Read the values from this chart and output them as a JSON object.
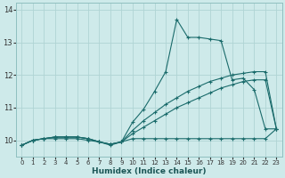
{
  "xlabel": "Humidex (Indice chaleur)",
  "bg_color": "#ceeaea",
  "grid_color": "#b0d4d4",
  "line_color": "#1a6b6b",
  "xlim": [
    -0.5,
    23.5
  ],
  "ylim": [
    9.5,
    14.2
  ],
  "yticks": [
    10,
    11,
    12,
    13,
    14
  ],
  "xticks": [
    0,
    1,
    2,
    3,
    4,
    5,
    6,
    7,
    8,
    9,
    10,
    11,
    12,
    13,
    14,
    15,
    16,
    17,
    18,
    19,
    20,
    21,
    22,
    23
  ],
  "series": [
    {
      "x": [
        0,
        1,
        2,
        3,
        4,
        5,
        6,
        7,
        8,
        9,
        10,
        11,
        12,
        13,
        14,
        15,
        16,
        17,
        18,
        19,
        20,
        21,
        22,
        23
      ],
      "y": [
        9.85,
        10.0,
        10.05,
        10.05,
        10.05,
        10.05,
        10.0,
        9.95,
        9.85,
        9.95,
        10.05,
        10.05,
        10.05,
        10.05,
        10.05,
        10.05,
        10.05,
        10.05,
        10.05,
        10.05,
        10.05,
        10.05,
        10.05,
        10.35
      ]
    },
    {
      "x": [
        0,
        1,
        2,
        3,
        4,
        5,
        6,
        7,
        8,
        9,
        10,
        11,
        12,
        13,
        14,
        15,
        16,
        17,
        18,
        19,
        20,
        21,
        22,
        23
      ],
      "y": [
        9.85,
        10.0,
        10.05,
        10.1,
        10.1,
        10.1,
        10.05,
        9.95,
        9.88,
        9.95,
        10.2,
        10.4,
        10.6,
        10.8,
        11.0,
        11.15,
        11.3,
        11.45,
        11.6,
        11.7,
        11.8,
        11.85,
        11.85,
        10.35
      ]
    },
    {
      "x": [
        0,
        1,
        2,
        3,
        4,
        5,
        6,
        7,
        8,
        9,
        10,
        11,
        12,
        13,
        14,
        15,
        16,
        17,
        18,
        19,
        20,
        21,
        22,
        23
      ],
      "y": [
        9.85,
        10.0,
        10.05,
        10.1,
        10.1,
        10.1,
        10.05,
        9.95,
        9.88,
        9.95,
        10.3,
        10.6,
        10.85,
        11.1,
        11.3,
        11.5,
        11.65,
        11.8,
        11.9,
        12.0,
        12.05,
        12.1,
        12.1,
        10.35
      ]
    },
    {
      "x": [
        0,
        1,
        2,
        3,
        4,
        5,
        6,
        7,
        8,
        9,
        10,
        11,
        12,
        13,
        14,
        15,
        16,
        17,
        18,
        19,
        20,
        21,
        22,
        23
      ],
      "y": [
        9.85,
        10.0,
        10.05,
        10.1,
        10.1,
        10.1,
        10.05,
        9.95,
        9.88,
        9.95,
        10.55,
        10.95,
        11.5,
        12.1,
        13.7,
        13.15,
        13.15,
        13.1,
        13.05,
        11.85,
        11.9,
        11.55,
        10.35,
        10.35
      ]
    }
  ]
}
